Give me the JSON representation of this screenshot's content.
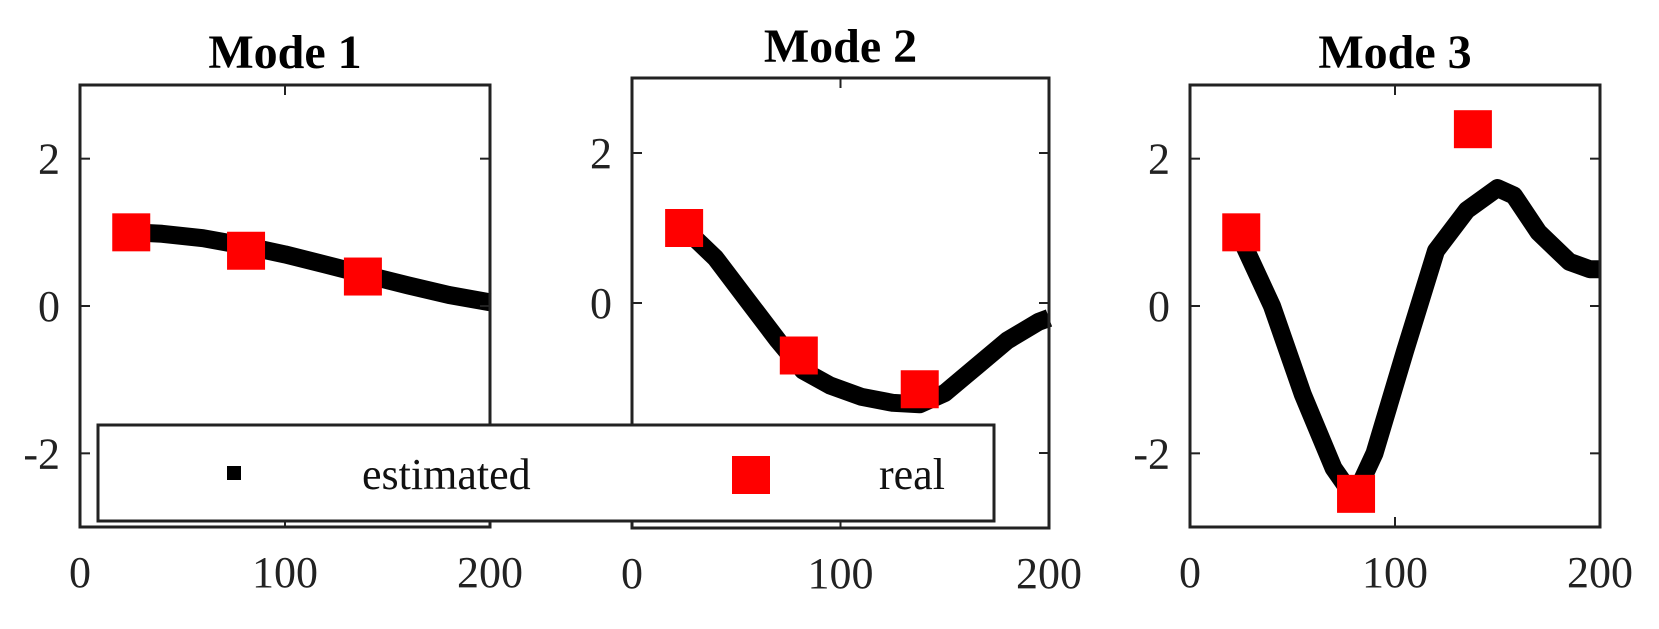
{
  "chart_data": [
    {
      "type": "line",
      "title": "Mode 1",
      "xlim": [
        0,
        200
      ],
      "ylim": [
        -3,
        3
      ],
      "xticks": [
        "0",
        "100",
        "200"
      ],
      "yticks": [
        "-2",
        "0",
        "2"
      ],
      "ytick_values": [
        -2,
        0,
        2
      ],
      "series": [
        {
          "name": "estimated",
          "style": "thick-black-marker-line",
          "color": "#000000",
          "x": [
            25,
            40,
            60,
            80,
            100,
            120,
            140,
            160,
            180,
            200
          ],
          "y": [
            1.0,
            0.98,
            0.92,
            0.82,
            0.7,
            0.56,
            0.42,
            0.28,
            0.15,
            0.05
          ]
        },
        {
          "name": "real",
          "style": "red-square",
          "color": "#ff0000",
          "x": [
            25,
            81,
            138
          ],
          "y": [
            1.0,
            0.75,
            0.4
          ]
        }
      ]
    },
    {
      "type": "line",
      "title": "Mode 2",
      "xlim": [
        0,
        200
      ],
      "ylim": [
        -3,
        3
      ],
      "xticks": [
        "0",
        "100",
        "200"
      ],
      "yticks": [
        "-2",
        "0",
        "2"
      ],
      "ytick_values": [
        -2,
        0,
        2
      ],
      "series": [
        {
          "name": "estimated",
          "style": "thick-black-marker-line",
          "color": "#000000",
          "x": [
            25,
            40,
            55,
            70,
            82,
            95,
            110,
            125,
            138,
            150,
            165,
            180,
            195,
            200
          ],
          "y": [
            1.0,
            0.6,
            0.05,
            -0.5,
            -0.9,
            -1.1,
            -1.25,
            -1.33,
            -1.35,
            -1.2,
            -0.85,
            -0.5,
            -0.25,
            -0.2
          ]
        },
        {
          "name": "real",
          "style": "red-square",
          "color": "#ff0000",
          "x": [
            25,
            80,
            138
          ],
          "y": [
            1.0,
            -0.7,
            -1.15
          ]
        }
      ]
    },
    {
      "type": "line",
      "title": "Mode 3",
      "xlim": [
        0,
        200
      ],
      "ylim": [
        -3,
        3
      ],
      "xticks": [
        "0",
        "100",
        "200"
      ],
      "yticks": [
        "-2",
        "0",
        "2"
      ],
      "ytick_values": [
        -2,
        0,
        2
      ],
      "series": [
        {
          "name": "estimated",
          "style": "thick-black-marker-line",
          "color": "#000000",
          "x": [
            25,
            40,
            55,
            70,
            80,
            90,
            105,
            120,
            135,
            150,
            158,
            170,
            185,
            195,
            200
          ],
          "y": [
            0.9,
            0.0,
            -1.2,
            -2.2,
            -2.6,
            -2.0,
            -0.6,
            0.75,
            1.3,
            1.6,
            1.5,
            1.0,
            0.6,
            0.5,
            0.5
          ]
        },
        {
          "name": "real",
          "style": "red-square",
          "color": "#ff0000",
          "x": [
            25,
            81,
            138
          ],
          "y": [
            1.0,
            -2.55,
            2.4
          ]
        }
      ]
    }
  ],
  "legend": {
    "entries": [
      {
        "label": "estimated",
        "color": "#000000",
        "marker": "small-square"
      },
      {
        "label": "real",
        "color": "#ff0000",
        "marker": "large-square"
      }
    ]
  }
}
